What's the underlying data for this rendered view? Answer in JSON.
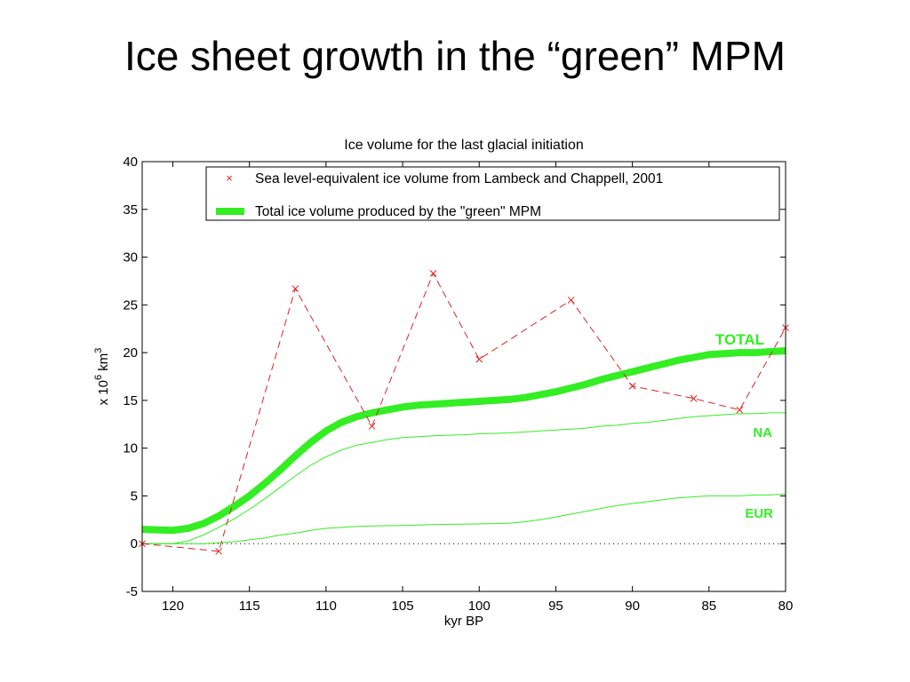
{
  "slide": {
    "title": "Ice sheet growth in the “green” MPM"
  },
  "colors": {
    "model": "#33ee22",
    "observed": "#dd2222",
    "axis": "#000000"
  },
  "chart_data": {
    "type": "line",
    "title": "Ice volume for the last glacial initiation",
    "xlabel": "kyr BP",
    "ylabel_parts": {
      "prefix": "x 10",
      "sup1": "6",
      "mid": " km",
      "sup2": "3"
    },
    "xlim": [
      122,
      80
    ],
    "ylim": [
      -5,
      40
    ],
    "x_reversed": true,
    "xticks": [
      120,
      115,
      110,
      105,
      100,
      95,
      90,
      85,
      80
    ],
    "yticks": [
      -5,
      0,
      5,
      10,
      15,
      20,
      25,
      30,
      35,
      40
    ],
    "grid": false,
    "legend_position": "top",
    "zero_line": true,
    "series": [
      {
        "name": "Sea level-equivalent ice volume from Lambeck and Chappell, 2001",
        "style": "dashed-x",
        "points": [
          [
            122,
            0
          ],
          [
            117,
            -0.8
          ],
          [
            112,
            26.7
          ],
          [
            107,
            12.3
          ],
          [
            103,
            28.3
          ],
          [
            100,
            19.3
          ],
          [
            94,
            25.5
          ],
          [
            90,
            16.5
          ],
          [
            86,
            15.2
          ],
          [
            83,
            14
          ],
          [
            80,
            22.6
          ]
        ]
      },
      {
        "name": "Total ice volume produced by the \"green\" MPM",
        "style": "thick",
        "label": "TOTAL",
        "points": [
          [
            122,
            1.5
          ],
          [
            120,
            1.4
          ],
          [
            119,
            1.6
          ],
          [
            118,
            2.1
          ],
          [
            117,
            2.9
          ],
          [
            116,
            3.9
          ],
          [
            115,
            5.0
          ],
          [
            114,
            6.3
          ],
          [
            113,
            7.7
          ],
          [
            112,
            9.2
          ],
          [
            111,
            10.6
          ],
          [
            110,
            11.8
          ],
          [
            109,
            12.7
          ],
          [
            108,
            13.3
          ],
          [
            107,
            13.7
          ],
          [
            106,
            14.0
          ],
          [
            105,
            14.3
          ],
          [
            104,
            14.5
          ],
          [
            103,
            14.6
          ],
          [
            102,
            14.7
          ],
          [
            101,
            14.8
          ],
          [
            100,
            14.9
          ],
          [
            99,
            15.0
          ],
          [
            98,
            15.1
          ],
          [
            97,
            15.3
          ],
          [
            96,
            15.6
          ],
          [
            95,
            15.9
          ],
          [
            94,
            16.3
          ],
          [
            93,
            16.7
          ],
          [
            92,
            17.2
          ],
          [
            91,
            17.6
          ],
          [
            90,
            18.0
          ],
          [
            89,
            18.4
          ],
          [
            88,
            18.8
          ],
          [
            87,
            19.2
          ],
          [
            86,
            19.5
          ],
          [
            85,
            19.8
          ],
          [
            84,
            19.9
          ],
          [
            83,
            20.0
          ],
          [
            82,
            20.0
          ],
          [
            81,
            20.1
          ],
          [
            80,
            20.2
          ]
        ]
      },
      {
        "name": "NA",
        "style": "thin",
        "label": "NA",
        "points": [
          [
            122,
            0
          ],
          [
            120,
            0
          ],
          [
            119,
            0.3
          ],
          [
            118,
            0.9
          ],
          [
            117,
            1.7
          ],
          [
            116,
            2.6
          ],
          [
            115,
            3.6
          ],
          [
            114,
            4.7
          ],
          [
            113,
            5.9
          ],
          [
            112,
            7.1
          ],
          [
            111,
            8.2
          ],
          [
            110,
            9.1
          ],
          [
            109,
            9.8
          ],
          [
            108,
            10.3
          ],
          [
            107,
            10.6
          ],
          [
            106,
            10.9
          ],
          [
            105,
            11.1
          ],
          [
            104,
            11.2
          ],
          [
            103,
            11.3
          ],
          [
            102,
            11.35
          ],
          [
            101,
            11.4
          ],
          [
            100,
            11.5
          ],
          [
            99,
            11.55
          ],
          [
            98,
            11.6
          ],
          [
            97,
            11.7
          ],
          [
            96,
            11.8
          ],
          [
            95,
            11.9
          ],
          [
            94,
            12.0
          ],
          [
            93,
            12.1
          ],
          [
            92,
            12.3
          ],
          [
            91,
            12.4
          ],
          [
            90,
            12.6
          ],
          [
            89,
            12.7
          ],
          [
            88,
            12.9
          ],
          [
            87,
            13.1
          ],
          [
            86,
            13.3
          ],
          [
            85,
            13.4
          ],
          [
            84,
            13.5
          ],
          [
            83,
            13.6
          ],
          [
            82,
            13.6
          ],
          [
            81,
            13.7
          ],
          [
            80,
            13.7
          ]
        ]
      },
      {
        "name": "EUR",
        "style": "thin",
        "label": "EUR",
        "points": [
          [
            122,
            0
          ],
          [
            118,
            0
          ],
          [
            117,
            0.1
          ],
          [
            116,
            0.2
          ],
          [
            115,
            0.4
          ],
          [
            114,
            0.6
          ],
          [
            113,
            0.9
          ],
          [
            112,
            1.1
          ],
          [
            111,
            1.4
          ],
          [
            110,
            1.6
          ],
          [
            109,
            1.7
          ],
          [
            108,
            1.8
          ],
          [
            107,
            1.85
          ],
          [
            105,
            1.9
          ],
          [
            103,
            2.0
          ],
          [
            101,
            2.05
          ],
          [
            99,
            2.1
          ],
          [
            98,
            2.15
          ],
          [
            97,
            2.3
          ],
          [
            96,
            2.5
          ],
          [
            95,
            2.8
          ],
          [
            94,
            3.1
          ],
          [
            93,
            3.4
          ],
          [
            92,
            3.7
          ],
          [
            91,
            4.0
          ],
          [
            90,
            4.2
          ],
          [
            89,
            4.4
          ],
          [
            88,
            4.6
          ],
          [
            87,
            4.8
          ],
          [
            86,
            4.9
          ],
          [
            85,
            5.0
          ],
          [
            84,
            5.0
          ],
          [
            83,
            5.0
          ],
          [
            82,
            5.1
          ],
          [
            81,
            5.1
          ],
          [
            80,
            5.2
          ]
        ]
      }
    ]
  }
}
